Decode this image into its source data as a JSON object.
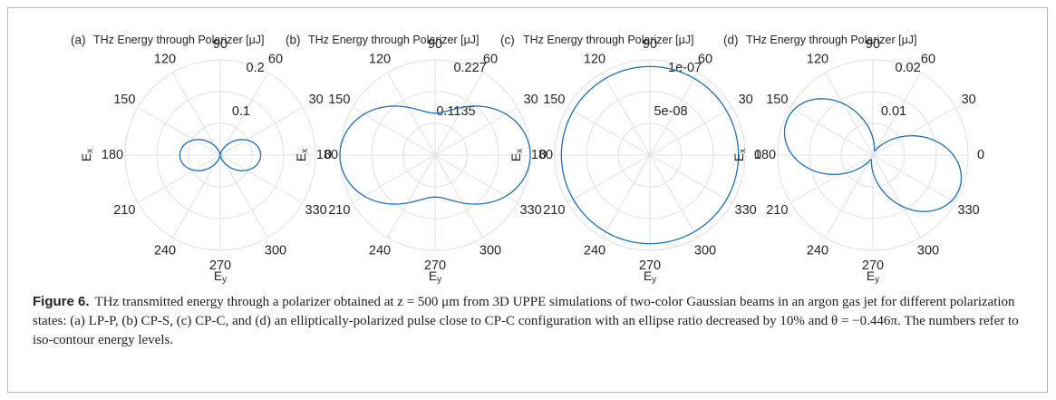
{
  "figure": {
    "label": "Figure 6.",
    "caption": "THz transmitted energy through a polarizer obtained at z = 500 μm from 3D UPPE simulations of two-color Gaussian beams in an argon gas jet for different polarization states: (a) LP-P, (b) CP-S, (c) CP-C, and (d) an elliptically-polarized pulse close to CP-C configuration with an ellipse ratio decreased by 10% and θ = −0.446π. The numbers refer to iso-contour energy levels."
  },
  "colors": {
    "curve": "#1f6fb5",
    "grid": "#e0e0e0",
    "text": "#262626",
    "frame": "#b5b5b5"
  },
  "chart_data": [
    {
      "type": "polar-line",
      "panel_label": "(a)",
      "title": "THz Energy through Polarizer [μJ]",
      "xlabel": "E_y",
      "ylabel": "E_x",
      "theta_ticks": [
        "0",
        "30",
        "60",
        "90",
        "120",
        "150",
        "180",
        "210",
        "240",
        "270",
        "300",
        "330"
      ],
      "rmax": 0.2,
      "r_tick_labels": [
        "0.1",
        "0.2"
      ],
      "curve": {
        "model": "figure8",
        "amplitude": 0.085,
        "angle_offset_deg": 0
      }
    },
    {
      "type": "polar-line",
      "panel_label": "(b)",
      "title": "THz Energy through Polarizer [μJ]",
      "xlabel": "E_y",
      "ylabel": "E_x",
      "theta_ticks": [
        "0",
        "30",
        "60",
        "90",
        "120",
        "150",
        "180",
        "210",
        "240",
        "270",
        "300",
        "330"
      ],
      "rmax": 0.227,
      "r_tick_labels": [
        "0.1135",
        "0.227"
      ],
      "curve": {
        "model": "cos2_offset",
        "base": 0.1,
        "amplitude": 0.127,
        "angle_offset_deg": 0
      }
    },
    {
      "type": "polar-line",
      "panel_label": "(c)",
      "title": "THz Energy through Polarizer [μJ]",
      "xlabel": "E_y",
      "ylabel": "E_x",
      "theta_ticks": [
        "0",
        "30",
        "60",
        "90",
        "120",
        "150",
        "180",
        "210",
        "240",
        "270",
        "300",
        "330"
      ],
      "rmax": 1e-07,
      "r_tick_labels": [
        "5e-08",
        "1e-07"
      ],
      "curve": {
        "model": "circle",
        "base": 9.3e-08
      }
    },
    {
      "type": "polar-line",
      "panel_label": "(d)",
      "title": "THz Energy through Polarizer [μJ]",
      "xlabel": "E_y",
      "ylabel": "E_x",
      "theta_ticks": [
        "0",
        "30",
        "60",
        "90",
        "120",
        "150",
        "180",
        "210",
        "240",
        "270",
        "300",
        "330"
      ],
      "rmax": 0.02,
      "r_tick_labels": [
        "0.01",
        "0.02"
      ],
      "curve": {
        "model": "figure8_tilted",
        "amplitude": 0.0195,
        "angle_offset_deg": -22
      }
    }
  ]
}
